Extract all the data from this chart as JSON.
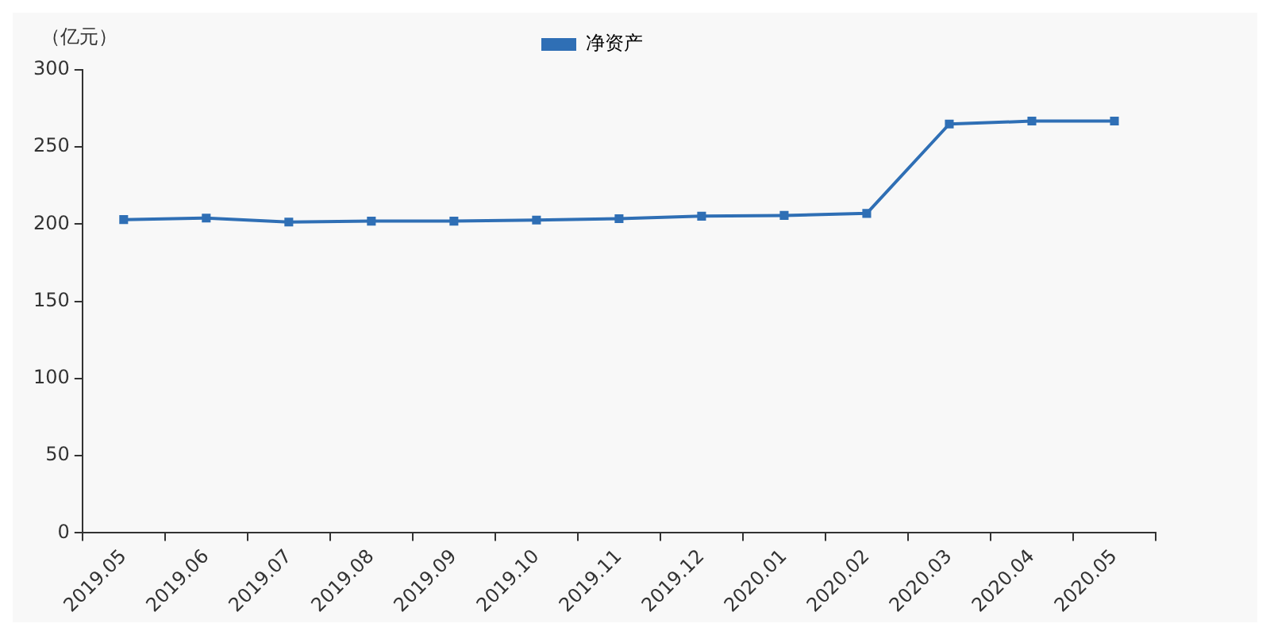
{
  "chart_data": {
    "type": "line",
    "ylabel": "（亿元）",
    "categories": [
      "2019.05",
      "2019.06",
      "2019.07",
      "2019.08",
      "2019.09",
      "2019.10",
      "2019.11",
      "2019.12",
      "2020.01",
      "2020.02",
      "2020.03",
      "2020.04",
      "2020.05"
    ],
    "series": [
      {
        "name": "净资产",
        "color": "#2f6fb5",
        "values": [
          203,
          204,
          201.4,
          202,
          202,
          202.7,
          203.6,
          205.2,
          205.7,
          207,
          264.9,
          266.8,
          266.8
        ]
      }
    ],
    "ylim": [
      0,
      300
    ],
    "yticks": [
      0,
      50,
      100,
      150,
      200,
      250,
      300
    ],
    "grid": false,
    "legend": "top",
    "marker": "square",
    "line_style": "solid"
  }
}
